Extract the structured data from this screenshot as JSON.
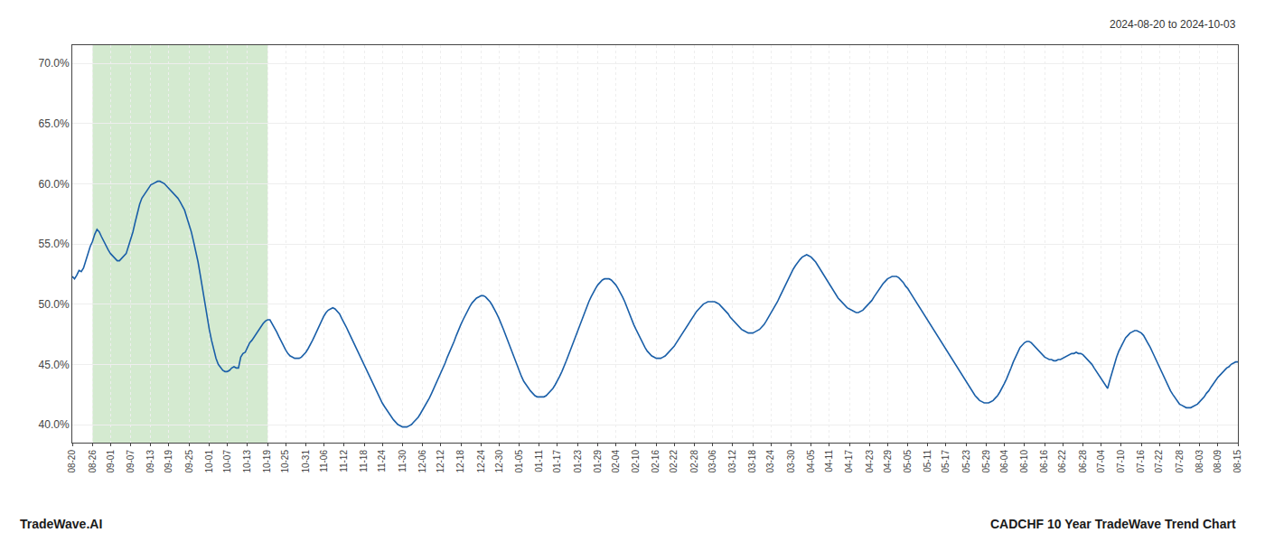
{
  "chart_data": {
    "type": "line",
    "annotations": [
      "2024-08-20 to 2024-10-03",
      "TradeWave.AI",
      "CADCHF 10 Year TradeWave Trend Chart"
    ],
    "color": "#1a5fa8",
    "grid": true,
    "ylim": [
      0.385,
      0.715
    ],
    "yticks": [
      {
        "value": 0.4,
        "label": "40.0%"
      },
      {
        "value": 0.45,
        "label": "45.0%"
      },
      {
        "value": 0.5,
        "label": "50.0%"
      },
      {
        "value": 0.55,
        "label": "55.0%"
      },
      {
        "value": 0.6,
        "label": "60.0%"
      },
      {
        "value": 0.65,
        "label": "65.0%"
      },
      {
        "value": 0.7,
        "label": "70.0%"
      }
    ],
    "highlight": {
      "start": "08-26",
      "end": "10-19",
      "color": "#d4ead0"
    },
    "categories": [
      "08-20",
      null,
      null,
      null,
      null,
      null,
      null,
      null,
      null,
      "08-26",
      null,
      null,
      null,
      null,
      null,
      null,
      null,
      "09-01",
      null,
      null,
      null,
      null,
      null,
      null,
      null,
      null,
      "09-07",
      null,
      null,
      null,
      null,
      null,
      null,
      null,
      null,
      "09-13",
      null,
      null,
      null,
      null,
      null,
      null,
      null,
      "09-19",
      null,
      null,
      null,
      null,
      null,
      null,
      null,
      null,
      "09-25",
      null,
      null,
      null,
      null,
      null,
      null,
      null,
      null,
      "10-01",
      null,
      null,
      null,
      null,
      null,
      null,
      null,
      "10-07",
      null,
      null,
      null,
      null,
      null,
      null,
      null,
      null,
      "10-13",
      null,
      null,
      null,
      null,
      null,
      null,
      null,
      null,
      "10-19",
      null,
      null,
      null,
      null,
      null,
      null,
      null,
      "10-25",
      null,
      null,
      null,
      null,
      null,
      null,
      null,
      null,
      "10-31",
      null,
      null,
      null,
      null,
      null,
      null,
      null,
      "11-06",
      null,
      null,
      null,
      null,
      null,
      null,
      null,
      null,
      "11-12",
      null,
      null,
      null,
      null,
      null,
      null,
      null,
      null,
      "11-18",
      null,
      null,
      null,
      null,
      null,
      null,
      null,
      "11-24",
      null,
      null,
      null,
      null,
      null,
      null,
      null,
      null,
      "11-30",
      null,
      null,
      null,
      null,
      null,
      null,
      null,
      null,
      "12-06",
      null,
      null,
      null,
      null,
      null,
      null,
      null,
      "12-12",
      null,
      null,
      null,
      null,
      null,
      null,
      null,
      null,
      "12-18",
      null,
      null,
      null,
      null,
      null,
      null,
      null,
      null,
      "12-24",
      null,
      null,
      null,
      null,
      null,
      null,
      null,
      "12-30",
      null,
      null,
      null,
      null,
      null,
      null,
      null,
      null,
      "01-05",
      null,
      null,
      null,
      null,
      null,
      null,
      null,
      null,
      "01-11",
      null,
      null,
      null,
      null,
      null,
      null,
      null,
      "01-17",
      null,
      null,
      null,
      null,
      null,
      null,
      null,
      null,
      "01-23",
      null,
      null,
      null,
      null,
      null,
      null,
      null,
      null,
      "01-29",
      null,
      null,
      null,
      null,
      null,
      null,
      null,
      "02-04",
      null,
      null,
      null,
      null,
      null,
      null,
      null,
      null,
      "02-10",
      null,
      null,
      null,
      null,
      null,
      null,
      null,
      null,
      "02-16",
      null,
      null,
      null,
      null,
      null,
      null,
      null,
      "02-22",
      null,
      null,
      null,
      null,
      null,
      null,
      null,
      null,
      "02-28",
      null,
      null,
      null,
      null,
      null,
      null,
      null,
      "03-06",
      null,
      null,
      null,
      null,
      null,
      null,
      null,
      null,
      "03-12",
      null,
      null,
      null,
      null,
      null,
      null,
      null,
      null,
      "03-18",
      null,
      null,
      null,
      null,
      null,
      null,
      null,
      "03-24",
      null,
      null,
      null,
      null,
      null,
      null,
      null,
      null,
      "03-30",
      null,
      null,
      null,
      null,
      null,
      null,
      null,
      null,
      "04-05",
      null,
      null,
      null,
      null,
      null,
      null,
      null,
      "04-11",
      null,
      null,
      null,
      null,
      null,
      null,
      null,
      null,
      "04-17",
      null,
      null,
      null,
      null,
      null,
      null,
      null,
      null,
      "04-23",
      null,
      null,
      null,
      null,
      null,
      null,
      null,
      "04-29",
      null,
      null,
      null,
      null,
      null,
      null,
      null,
      null,
      "05-05",
      null,
      null,
      null,
      null,
      null,
      null,
      null,
      null,
      "05-11",
      null,
      null,
      null,
      null,
      null,
      null,
      null,
      "05-17",
      null,
      null,
      null,
      null,
      null,
      null,
      null,
      null,
      "05-23",
      null,
      null,
      null,
      null,
      null,
      null,
      null,
      null,
      "05-29",
      null,
      null,
      null,
      null,
      null,
      null,
      null,
      "06-04",
      null,
      null,
      null,
      null,
      null,
      null,
      null,
      null,
      "06-10",
      null,
      null,
      null,
      null,
      null,
      null,
      null,
      null,
      "06-16",
      null,
      null,
      null,
      null,
      null,
      null,
      null,
      "06-22",
      null,
      null,
      null,
      null,
      null,
      null,
      null,
      null,
      "06-28",
      null,
      null,
      null,
      null,
      null,
      null,
      null,
      "07-04",
      null,
      null,
      null,
      null,
      null,
      null,
      null,
      null,
      "07-10",
      null,
      null,
      null,
      null,
      null,
      null,
      null,
      null,
      "07-16",
      null,
      null,
      null,
      null,
      null,
      null,
      null,
      "07-22",
      null,
      null,
      null,
      null,
      null,
      null,
      null,
      null,
      "07-28",
      null,
      null,
      null,
      null,
      null,
      null,
      null,
      null,
      "08-03",
      null,
      null,
      null,
      null,
      null,
      null,
      null,
      "08-09",
      null,
      null,
      null,
      null,
      null,
      null,
      null,
      null,
      "08-15"
    ],
    "values": [
      0.523,
      0.521,
      0.524,
      0.528,
      0.527,
      0.53,
      0.536,
      0.543,
      0.548,
      0.552,
      0.558,
      0.562,
      0.56,
      0.556,
      0.552,
      0.548,
      0.545,
      0.542,
      0.54,
      0.538,
      0.536,
      0.536,
      0.538,
      0.54,
      0.542,
      0.548,
      0.554,
      0.56,
      0.568,
      0.576,
      0.583,
      0.588,
      0.591,
      0.594,
      0.597,
      0.599,
      0.6,
      0.601,
      0.602,
      0.602,
      0.601,
      0.6,
      0.598,
      0.596,
      0.594,
      0.592,
      0.59,
      0.588,
      0.585,
      0.582,
      0.578,
      0.572,
      0.566,
      0.56,
      0.552,
      0.544,
      0.535,
      0.524,
      0.512,
      0.5,
      0.489,
      0.479,
      0.47,
      0.462,
      0.455,
      0.45,
      0.447,
      0.445,
      0.444,
      0.444,
      0.445,
      0.447,
      0.448,
      0.447,
      0.447,
      0.456,
      0.459,
      0.46,
      0.464,
      0.468,
      0.47,
      0.473,
      0.476,
      0.479,
      0.482,
      0.484,
      0.486,
      0.487,
      0.487,
      0.484,
      0.481,
      0.477,
      0.473,
      0.469,
      0.465,
      0.462,
      0.459,
      0.457,
      0.456,
      0.455,
      0.455,
      0.455,
      0.456,
      0.458,
      0.46,
      0.463,
      0.466,
      0.47,
      0.474,
      0.478,
      0.483,
      0.487,
      0.49,
      0.493,
      0.495,
      0.496,
      0.497,
      0.496,
      0.494,
      0.492,
      0.488,
      0.485,
      0.481,
      0.477,
      0.473,
      0.469,
      0.465,
      0.461,
      0.457,
      0.453,
      0.449,
      0.445,
      0.441,
      0.437,
      0.433,
      0.429,
      0.425,
      0.422,
      0.418,
      0.415,
      0.412,
      0.409,
      0.407,
      0.404,
      0.402,
      0.4,
      0.399,
      0.398,
      0.398,
      0.398,
      0.399,
      0.4,
      0.402,
      0.404,
      0.406,
      0.409,
      0.412,
      0.415,
      0.419,
      0.422,
      0.426,
      0.43,
      0.434,
      0.438,
      0.443,
      0.447,
      0.451,
      0.456,
      0.46,
      0.465,
      0.469,
      0.474,
      0.479,
      0.483,
      0.487,
      0.491,
      0.495,
      0.498,
      0.501,
      0.503,
      0.505,
      0.506,
      0.507,
      0.507,
      0.506,
      0.504,
      0.502,
      0.499,
      0.496,
      0.492,
      0.488,
      0.484,
      0.479,
      0.474,
      0.469,
      0.464,
      0.459,
      0.454,
      0.449,
      0.444,
      0.44,
      0.436,
      0.433,
      0.43,
      0.428,
      0.426,
      0.424,
      0.423,
      0.423,
      0.423,
      0.423,
      0.424,
      0.426,
      0.428,
      0.43,
      0.433,
      0.436,
      0.44,
      0.444,
      0.448,
      0.453,
      0.458,
      0.463,
      0.468,
      0.473,
      0.478,
      0.483,
      0.488,
      0.493,
      0.497,
      0.502,
      0.506,
      0.51,
      0.513,
      0.516,
      0.518,
      0.52,
      0.521,
      0.521,
      0.521,
      0.52,
      0.518,
      0.516,
      0.513,
      0.51,
      0.506,
      0.502,
      0.497,
      0.493,
      0.488,
      0.483,
      0.479,
      0.475,
      0.471,
      0.467,
      0.464,
      0.461,
      0.459,
      0.457,
      0.456,
      0.455,
      0.455,
      0.455,
      0.456,
      0.457,
      0.459,
      0.461,
      0.463,
      0.465,
      0.468,
      0.471,
      0.474,
      0.477,
      0.48,
      0.483,
      0.486,
      0.489,
      0.491,
      0.494,
      0.496,
      0.498,
      0.5,
      0.501,
      0.502,
      0.502,
      0.502,
      0.502,
      0.501,
      0.5,
      0.498,
      0.496,
      0.494,
      0.492,
      0.489,
      0.487,
      0.485,
      0.483,
      0.481,
      0.479,
      0.478,
      0.477,
      0.476,
      0.476,
      0.476,
      0.477,
      0.478,
      0.479,
      0.481,
      0.483,
      0.486,
      0.489,
      0.492,
      0.495,
      0.499,
      0.502,
      0.506,
      0.51,
      0.514,
      0.518,
      0.522,
      0.525,
      0.529,
      0.532,
      0.535,
      0.537,
      0.539,
      0.54,
      0.541,
      0.54,
      0.539,
      0.537,
      0.535,
      0.532,
      0.529,
      0.526,
      0.523,
      0.52,
      0.516,
      0.513,
      0.51,
      0.507,
      0.505,
      0.503,
      0.501,
      0.499,
      0.497,
      0.496,
      0.495,
      0.494,
      0.493,
      0.493,
      0.494,
      0.495,
      0.497,
      0.499,
      0.501,
      0.503,
      0.506,
      0.509,
      0.512,
      0.514,
      0.517,
      0.519,
      0.521,
      0.522,
      0.523,
      0.523,
      0.523,
      0.522,
      0.52,
      0.518,
      0.515,
      0.513,
      0.51,
      0.507,
      0.504,
      0.501,
      0.498,
      0.495,
      0.492,
      0.489,
      0.486,
      0.483,
      0.48,
      0.477,
      0.474,
      0.471,
      0.468,
      0.465,
      0.462,
      0.459,
      0.456,
      0.453,
      0.45,
      0.447,
      0.444,
      0.441,
      0.438,
      0.435,
      0.432,
      0.429,
      0.426,
      0.424,
      0.422,
      0.42,
      0.419,
      0.418,
      0.418,
      0.418,
      0.419,
      0.42,
      0.422,
      0.424,
      0.427,
      0.43,
      0.434,
      0.438,
      0.442,
      0.447,
      0.452,
      0.456,
      0.46,
      0.464,
      0.466,
      0.468,
      0.469,
      0.469,
      0.468,
      0.466,
      0.464,
      0.462,
      0.46,
      0.458,
      0.456,
      0.455,
      0.454,
      0.454,
      0.453,
      0.453,
      0.454,
      0.454,
      0.455,
      0.456,
      0.457,
      0.458,
      0.459,
      0.459,
      0.46,
      0.459,
      0.459,
      0.458,
      0.456,
      0.454,
      0.452,
      0.45,
      0.447,
      0.444,
      0.441,
      0.438,
      0.435,
      0.432,
      0.43,
      0.437,
      0.444,
      0.45,
      0.456,
      0.461,
      0.465,
      0.469,
      0.472,
      0.474,
      0.476,
      0.477,
      0.478,
      0.478,
      0.477,
      0.476,
      0.474,
      0.471,
      0.468,
      0.464,
      0.46,
      0.456,
      0.452,
      0.447,
      0.443,
      0.439,
      0.435,
      0.431,
      0.428,
      0.425,
      0.422,
      0.419,
      0.417,
      0.416,
      0.415,
      0.414,
      0.414,
      0.414,
      0.415,
      0.416,
      0.417,
      0.419,
      0.421,
      0.423,
      0.426,
      0.428,
      0.431,
      0.434,
      0.436,
      0.439,
      0.441,
      0.443,
      0.445,
      0.447,
      0.448,
      0.45,
      0.451,
      0.452,
      0.452
    ]
  }
}
